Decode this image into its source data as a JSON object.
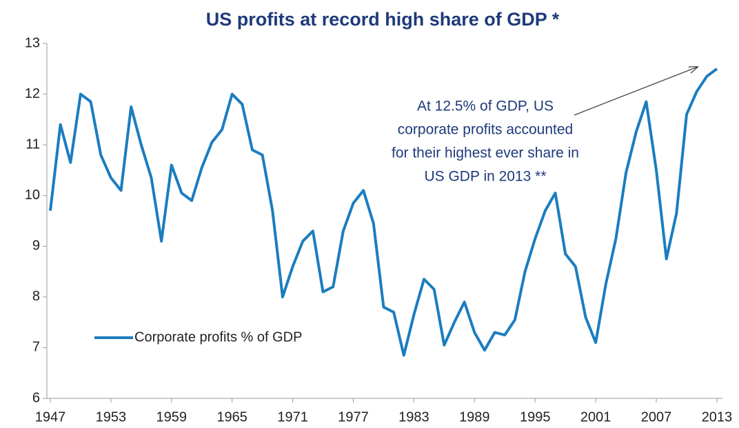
{
  "chart_data": {
    "type": "line",
    "title": "US profits at record high share of GDP *",
    "x": [
      1947,
      1948,
      1949,
      1950,
      1951,
      1952,
      1953,
      1954,
      1955,
      1956,
      1957,
      1958,
      1959,
      1960,
      1961,
      1962,
      1963,
      1964,
      1965,
      1966,
      1967,
      1968,
      1969,
      1970,
      1971,
      1972,
      1973,
      1974,
      1975,
      1976,
      1977,
      1978,
      1979,
      1980,
      1981,
      1982,
      1983,
      1984,
      1985,
      1986,
      1987,
      1988,
      1989,
      1990,
      1991,
      1992,
      1993,
      1994,
      1995,
      1996,
      1997,
      1998,
      1999,
      2000,
      2001,
      2002,
      2003,
      2004,
      2005,
      2006,
      2007,
      2008,
      2009,
      2010,
      2011,
      2012,
      2013
    ],
    "series": [
      {
        "name": "Corporate profits % of GDP",
        "color": "#1b7dc0",
        "values": [
          9.7,
          11.4,
          10.65,
          12.0,
          11.85,
          10.8,
          10.35,
          10.1,
          11.75,
          11.0,
          10.35,
          9.1,
          10.6,
          10.05,
          9.9,
          10.55,
          11.05,
          11.3,
          12.0,
          11.8,
          10.9,
          10.8,
          9.7,
          8.0,
          8.6,
          9.1,
          9.3,
          8.1,
          8.2,
          9.3,
          9.85,
          10.1,
          9.45,
          7.8,
          7.7,
          6.85,
          7.65,
          8.35,
          8.15,
          7.05,
          7.5,
          7.9,
          7.3,
          6.95,
          7.3,
          7.25,
          7.55,
          8.5,
          9.15,
          9.7,
          10.05,
          8.85,
          8.6,
          7.6,
          7.1,
          8.25,
          9.15,
          10.45,
          11.25,
          11.85,
          10.5,
          8.75,
          9.65,
          11.6,
          12.05,
          12.35,
          12.5
        ]
      }
    ],
    "xlim": [
      1946.66,
      2013.55
    ],
    "xticks": [
      1947,
      1953,
      1959,
      1965,
      1971,
      1977,
      1983,
      1989,
      1995,
      2001,
      2007,
      2013
    ],
    "ylim": [
      6,
      13
    ],
    "yticks": [
      6,
      7,
      8,
      9,
      10,
      11,
      12,
      13
    ],
    "grid": false,
    "legend": "lower-left",
    "annotation": {
      "lines": [
        "At 12.5% of GDP, US",
        "corporate profits accounted",
        "for their highest ever share in",
        "US GDP in 2013 **"
      ]
    }
  }
}
